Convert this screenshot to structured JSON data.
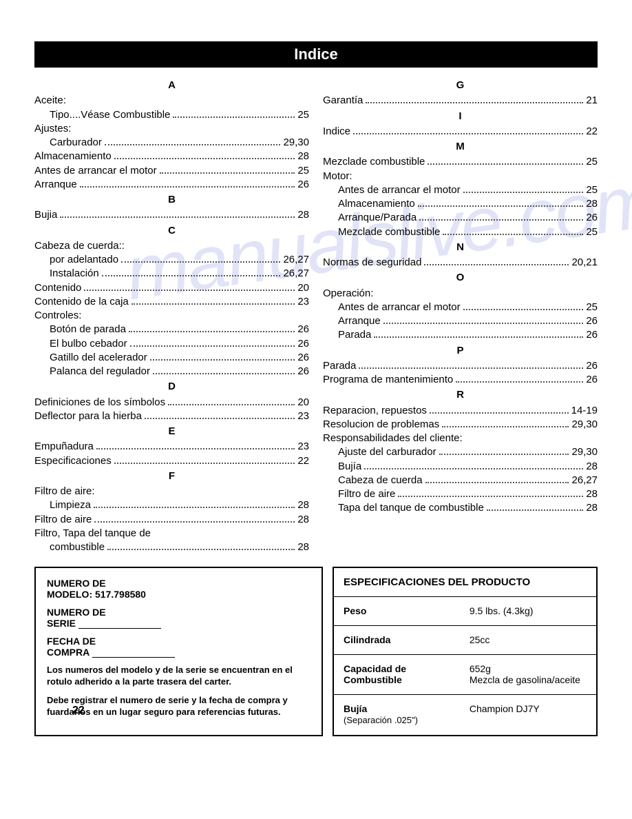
{
  "title": "Indice",
  "page_number": "22",
  "watermark": "manualslive.com",
  "left_column": [
    {
      "type": "letter",
      "text": "A"
    },
    {
      "type": "group",
      "text": "Aceite:"
    },
    {
      "type": "entry",
      "indent": true,
      "label": "Tipo....Véase Combustible",
      "page": "25"
    },
    {
      "type": "group",
      "text": "Ajustes:"
    },
    {
      "type": "entry",
      "indent": true,
      "label": "Carburador",
      "page": "29,30"
    },
    {
      "type": "entry",
      "label": "Almacenamiento",
      "page": "28"
    },
    {
      "type": "entry",
      "label": "Antes de arrancar el motor",
      "page": "25"
    },
    {
      "type": "entry",
      "label": "Arranque",
      "page": "26"
    },
    {
      "type": "letter",
      "text": "B"
    },
    {
      "type": "entry",
      "label": "Bujia",
      "page": "28"
    },
    {
      "type": "letter",
      "text": "C"
    },
    {
      "type": "group",
      "text": "Cabeza de cuerda::"
    },
    {
      "type": "entry",
      "indent": true,
      "label": "por adelantado",
      "page": "26,27"
    },
    {
      "type": "entry",
      "indent": true,
      "label": "Instalación",
      "page": "26,27"
    },
    {
      "type": "entry",
      "label": "Contenido",
      "page": "20"
    },
    {
      "type": "entry",
      "label": "Contenido de la caja",
      "page": "23"
    },
    {
      "type": "group",
      "text": "Controles:"
    },
    {
      "type": "entry",
      "indent": true,
      "label": "Botón de parada",
      "page": "26"
    },
    {
      "type": "entry",
      "indent": true,
      "label": "El bulbo cebador",
      "page": "26"
    },
    {
      "type": "entry",
      "indent": true,
      "label": "Gatillo del acelerador",
      "page": "26"
    },
    {
      "type": "entry",
      "indent": true,
      "label": "Palanca del regulador",
      "page": "26"
    },
    {
      "type": "letter",
      "text": "D"
    },
    {
      "type": "entry",
      "label": "Definiciones de los símbolos",
      "page": "20"
    },
    {
      "type": "entry",
      "label": "Deflector para la hierba",
      "page": "23"
    },
    {
      "type": "letter",
      "text": "E"
    },
    {
      "type": "entry",
      "label": "Empuñadura",
      "page": "23"
    },
    {
      "type": "entry",
      "label": "Especificaciones",
      "page": "22"
    },
    {
      "type": "letter",
      "text": "F"
    },
    {
      "type": "group",
      "text": "Filtro de aire:"
    },
    {
      "type": "entry",
      "indent": true,
      "label": "Limpieza",
      "page": "28"
    },
    {
      "type": "entry",
      "label": "Filtro de aire",
      "page": "28"
    },
    {
      "type": "group",
      "text": "Filtro, Tapa del tanque de"
    },
    {
      "type": "entry",
      "indent": true,
      "label": "combustible",
      "page": "28"
    }
  ],
  "right_column": [
    {
      "type": "letter",
      "text": "G"
    },
    {
      "type": "entry",
      "label": "Garantía",
      "page": "21"
    },
    {
      "type": "letter",
      "text": "I"
    },
    {
      "type": "entry",
      "label": "Indice",
      "page": "22"
    },
    {
      "type": "letter",
      "text": "M"
    },
    {
      "type": "entry",
      "label": "Mezclade combustible",
      "page": "25"
    },
    {
      "type": "group",
      "text": "Motor:"
    },
    {
      "type": "entry",
      "indent": true,
      "label": "Antes de arrancar el motor",
      "page": "25"
    },
    {
      "type": "entry",
      "indent": true,
      "label": "Almacenamiento",
      "page": "28"
    },
    {
      "type": "entry",
      "indent": true,
      "label": "Arranque/Parada",
      "page": "26"
    },
    {
      "type": "entry",
      "indent": true,
      "label": "Mezclade combustible",
      "page": "25"
    },
    {
      "type": "letter",
      "text": "N"
    },
    {
      "type": "entry",
      "label": "Normas de seguridad",
      "page": "20,21"
    },
    {
      "type": "letter",
      "text": "O"
    },
    {
      "type": "group",
      "text": "Operación:"
    },
    {
      "type": "entry",
      "indent": true,
      "label": "Antes de arrancar el motor",
      "page": "25"
    },
    {
      "type": "entry",
      "indent": true,
      "label": "Arranque",
      "page": "26"
    },
    {
      "type": "entry",
      "indent": true,
      "label": "Parada",
      "page": "26"
    },
    {
      "type": "letter",
      "text": "P"
    },
    {
      "type": "entry",
      "label": "Parada",
      "page": "26"
    },
    {
      "type": "entry",
      "label": "Programa de mantenimiento",
      "page": "26"
    },
    {
      "type": "letter",
      "text": "R"
    },
    {
      "type": "entry",
      "label": "Reparacion, repuestos",
      "page": "14-19"
    },
    {
      "type": "entry",
      "label": "Resolucion de problemas",
      "page": "29,30"
    },
    {
      "type": "group",
      "text": "Responsabilidades del cliente:"
    },
    {
      "type": "entry",
      "indent": true,
      "label": "Ajuste del carburador",
      "page": "29,30"
    },
    {
      "type": "entry",
      "indent": true,
      "label": "Bujía",
      "page": "28"
    },
    {
      "type": "entry",
      "indent": true,
      "label": "Cabeza de cuerda",
      "page": "26,27"
    },
    {
      "type": "entry",
      "indent": true,
      "label": "Filtro de aire",
      "page": "28"
    },
    {
      "type": "entry",
      "indent": true,
      "label": "Tapa del tanque de combustible",
      "page": "28"
    }
  ],
  "info_box": {
    "line1a": "NUMERO DE",
    "line1b": "MODELO: 517.798580",
    "line2a": "NUMERO DE",
    "line2b": "SERIE",
    "line3a": "FECHA DE",
    "line3b": "COMPRA",
    "note1": "Los numeros del modelo y de la serie se encuentran en el rotulo adherido a la parte trasera del carter.",
    "note2": "Debe registrar el numero de serie y la fecha de compra y fuardarlos en un lugar seguro para referencias futuras."
  },
  "spec_table": {
    "heading": "ESPECIFICACIONES DEL PRODUCTO",
    "rows": [
      {
        "label": "Peso",
        "sub": "",
        "value": "9.5 lbs. (4.3kg)"
      },
      {
        "label": "Cilindrada",
        "sub": "",
        "value": "25cc"
      },
      {
        "label": "Capacidad de Combustible",
        "sub": "",
        "value": "652g\nMezcla de gasolina/aceite"
      },
      {
        "label": "Bujía",
        "sub": "(Separación .025\")",
        "value": "Champion DJ7Y"
      }
    ]
  }
}
